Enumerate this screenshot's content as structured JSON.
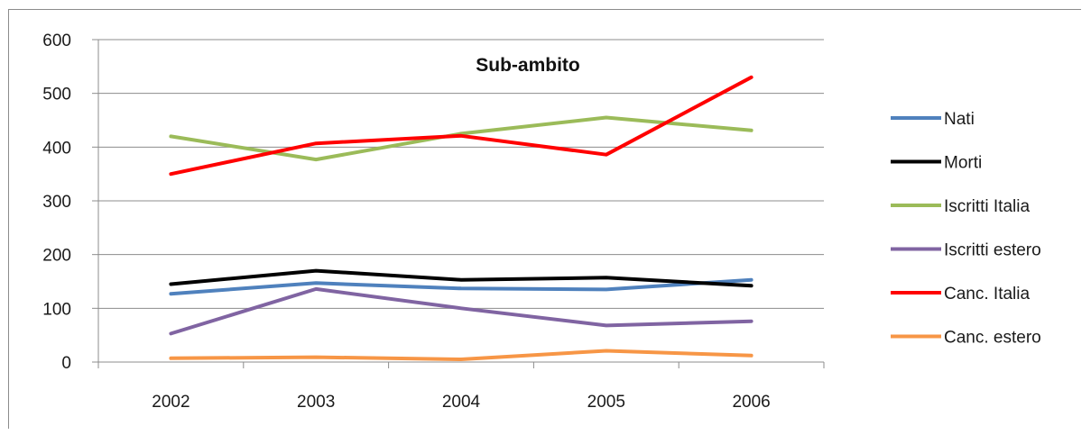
{
  "chart_data": {
    "type": "line",
    "title": "Sub-ambito",
    "xlabel": "",
    "ylabel": "",
    "categories": [
      "2002",
      "2003",
      "2004",
      "2005",
      "2006"
    ],
    "ylim": [
      0,
      600
    ],
    "yticks": [
      0,
      100,
      200,
      300,
      400,
      500,
      600
    ],
    "grid": "horizontal",
    "legend_position": "right",
    "series": [
      {
        "name": "Nati",
        "color": "#4f81bd",
        "values": [
          127,
          147,
          137,
          135,
          153
        ]
      },
      {
        "name": "Morti",
        "color": "#000000",
        "values": [
          145,
          170,
          153,
          157,
          142
        ]
      },
      {
        "name": "Iscritti Italia",
        "color": "#9bbb59",
        "values": [
          420,
          377,
          425,
          455,
          431
        ]
      },
      {
        "name": "Iscritti estero",
        "color": "#8064a2",
        "values": [
          53,
          136,
          100,
          68,
          76
        ]
      },
      {
        "name": "Canc. Italia",
        "color": "#ff0000",
        "values": [
          350,
          407,
          421,
          386,
          530
        ]
      },
      {
        "name": "Canc. estero",
        "color": "#f79646",
        "values": [
          7,
          9,
          5,
          21,
          12
        ]
      }
    ]
  }
}
